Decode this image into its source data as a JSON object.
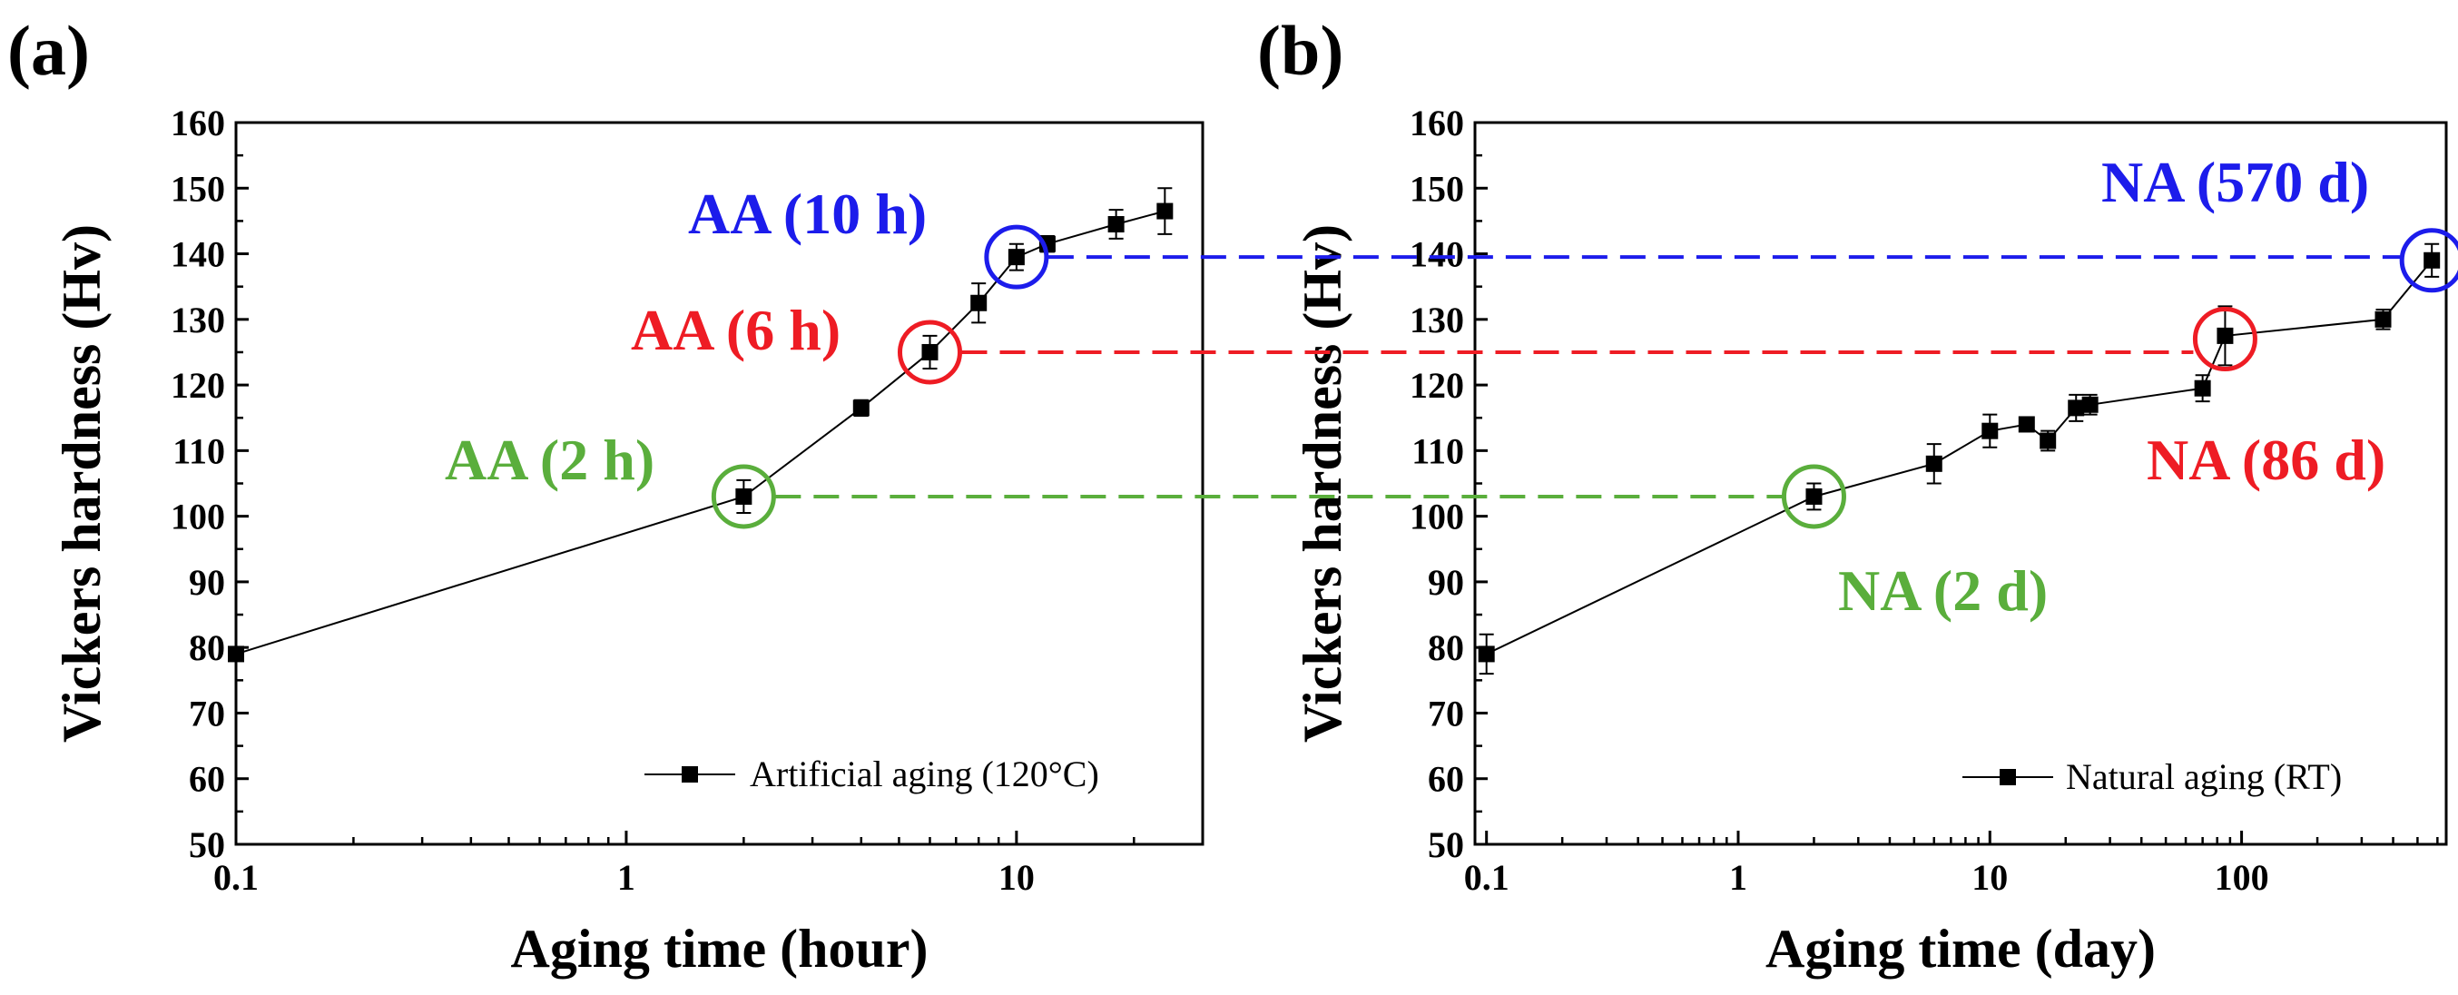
{
  "colors": {
    "green": "#5aae3c",
    "red": "#ee1c24",
    "blue": "#1c1ceb",
    "black": "#000000"
  },
  "chart_data": [
    {
      "panel_label": "(a)",
      "type": "line",
      "xscale": "log",
      "xlabel": "Aging time (hour)",
      "ylabel": "Vickers hardness (Hv)",
      "xlim": [
        0.1,
        30
      ],
      "ylim": [
        50,
        160
      ],
      "xticks": [
        0.1,
        1,
        10
      ],
      "xtick_labels": [
        "0.1",
        "1",
        "10"
      ],
      "yticks": [
        50,
        60,
        70,
        80,
        90,
        100,
        110,
        120,
        130,
        140,
        150,
        160
      ],
      "legend_placement": "bottom-right",
      "series": [
        {
          "name": "Artificial aging (120°C)",
          "x": [
            0.1,
            2,
            4,
            6,
            8,
            10,
            12,
            18,
            24
          ],
          "y": [
            79,
            103,
            116.5,
            125,
            132.5,
            139.5,
            141.5,
            144.5,
            146.5
          ],
          "err": [
            0.8,
            2.5,
            1.2,
            2.5,
            3,
            2,
            1.2,
            2.2,
            3.5
          ]
        }
      ],
      "annotations": [
        {
          "text": "AA (2 h)",
          "x": 2,
          "y": 103,
          "color": "green"
        },
        {
          "text": "AA (6 h)",
          "x": 6,
          "y": 125,
          "color": "red"
        },
        {
          "text": "AA (10 h)",
          "x": 10,
          "y": 139.5,
          "color": "blue"
        }
      ]
    },
    {
      "panel_label": "(b)",
      "type": "line",
      "xscale": "log",
      "xlabel": "Aging time (day)",
      "ylabel": "Vickers hardness (Hv)",
      "xlim": [
        0.09,
        650
      ],
      "ylim": [
        50,
        160
      ],
      "xticks": [
        0.1,
        1,
        10,
        100
      ],
      "xtick_labels": [
        "0.1",
        "1",
        "10",
        "100"
      ],
      "yticks": [
        50,
        60,
        70,
        80,
        90,
        100,
        110,
        120,
        130,
        140,
        150,
        160
      ],
      "legend_placement": "bottom-right",
      "series": [
        {
          "name": "Natural aging (RT)",
          "x": [
            0.1,
            2,
            6,
            10,
            14,
            17,
            22,
            25,
            70,
            86,
            365,
            570
          ],
          "y": [
            79,
            103,
            108,
            113,
            114,
            111.5,
            116.5,
            117,
            119.5,
            127.5,
            130,
            139
          ],
          "err": [
            3,
            2,
            3,
            2.5,
            1,
            1.5,
            2,
            1.5,
            2,
            4.5,
            1.5,
            2.5
          ]
        }
      ],
      "annotations": [
        {
          "text": "NA (2 d)",
          "x": 2,
          "y": 103,
          "color": "green"
        },
        {
          "text": "NA (86 d)",
          "x": 86,
          "y": 127,
          "color": "red"
        },
        {
          "text": "NA (570 d)",
          "x": 570,
          "y": 139,
          "color": "blue"
        }
      ]
    }
  ]
}
